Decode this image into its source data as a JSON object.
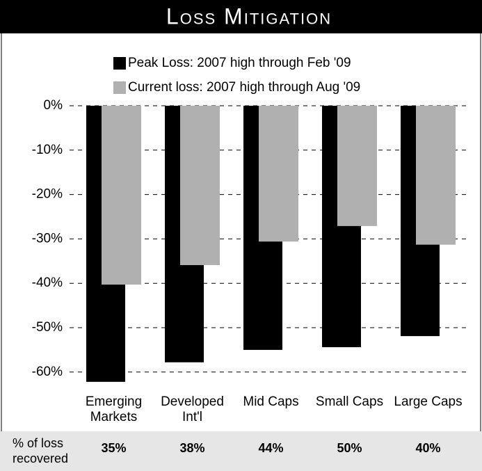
{
  "chart_data": {
    "type": "bar",
    "title": "Loss Mitigation",
    "categories": [
      "Emerging Markets",
      "Developed Int'l",
      "Mid Caps",
      "Small Caps",
      "Large Caps"
    ],
    "series": [
      {
        "name": "Peak Loss: 2007 high through Feb '09",
        "color": "#000000",
        "values": [
          -62.2,
          -57.8,
          -55,
          -54.4,
          -51.9
        ]
      },
      {
        "name": "Current loss: 2007 high through Aug '09",
        "color": "#b0b0b0",
        "values": [
          -40.3,
          -35.9,
          -30.6,
          -27.1,
          -31.3
        ]
      }
    ],
    "ylim": [
      -64,
      0
    ],
    "yticks": [
      {
        "value": 0,
        "label": "0%"
      },
      {
        "value": -10,
        "label": "-10%"
      },
      {
        "value": -20,
        "label": "-20%"
      },
      {
        "value": -30,
        "label": "-30%"
      },
      {
        "value": -40,
        "label": "-40%"
      },
      {
        "value": -50,
        "label": "-50%"
      },
      {
        "value": -60,
        "label": "-60%"
      }
    ],
    "grid": true,
    "recovered": {
      "label": "% of loss recovered",
      "values": [
        35,
        38,
        44,
        50,
        40
      ],
      "value_labels": [
        "35%",
        "38%",
        "44%",
        "50%",
        "40%"
      ]
    }
  }
}
